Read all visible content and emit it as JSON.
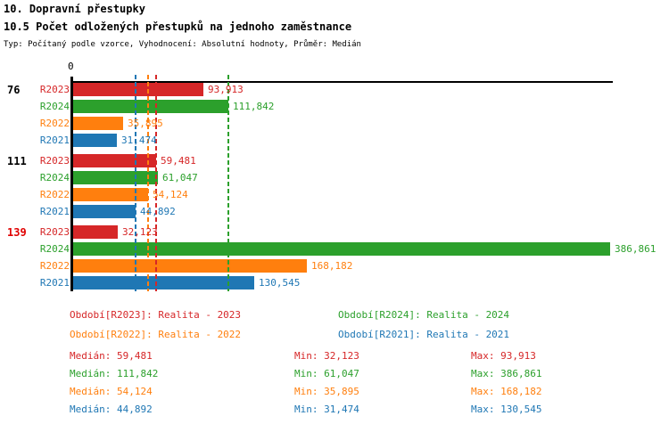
{
  "header": {
    "title_line1": "10. Dopravní přestupky",
    "title_line2": "10.5 Počet odložených přestupků na jednoho zaměstnance",
    "meta": "Typ: Počítaný podle vzorce, Vyhodnocení: Absolutní hodnoty, Průměr: Medián"
  },
  "chart_data": {
    "type": "bar",
    "orientation": "horizontal",
    "axis": {
      "zero_label": "0",
      "xlim": [
        0,
        386861
      ]
    },
    "series_order": [
      "R2023",
      "R2024",
      "R2022",
      "R2021"
    ],
    "series_colors": {
      "R2023": "#d62728",
      "R2024": "#2ca02c",
      "R2022": "#ff7f0e",
      "R2021": "#1f77b4"
    },
    "max_value": 386861,
    "groups": [
      {
        "label": "76",
        "label_color": "#000000",
        "bars": [
          {
            "series": "R2023",
            "value": 93913,
            "display": "93,913"
          },
          {
            "series": "R2024",
            "value": 111842,
            "display": "111,842"
          },
          {
            "series": "R2022",
            "value": 35895,
            "display": "35,895"
          },
          {
            "series": "R2021",
            "value": 31474,
            "display": "31,474"
          }
        ]
      },
      {
        "label": "111",
        "label_color": "#000000",
        "bars": [
          {
            "series": "R2023",
            "value": 59481,
            "display": "59,481"
          },
          {
            "series": "R2024",
            "value": 61047,
            "display": "61,047"
          },
          {
            "series": "R2022",
            "value": 54124,
            "display": "54,124"
          },
          {
            "series": "R2021",
            "value": 44892,
            "display": "44,892"
          }
        ]
      },
      {
        "label": "139",
        "label_color": "#e00000",
        "bars": [
          {
            "series": "R2023",
            "value": 32123,
            "display": "32,123"
          },
          {
            "series": "R2024",
            "value": 386861,
            "display": "386,861"
          },
          {
            "series": "R2022",
            "value": 168182,
            "display": "168,182"
          },
          {
            "series": "R2021",
            "value": 130545,
            "display": "130,545"
          }
        ]
      }
    ],
    "median_lines": [
      {
        "series": "R2023",
        "value": 59481
      },
      {
        "series": "R2024",
        "value": 111842
      },
      {
        "series": "R2022",
        "value": 54124
      },
      {
        "series": "R2021",
        "value": 44892
      }
    ]
  },
  "legend": [
    {
      "series": "R2023",
      "text": "Období[R2023]: Realita - 2023",
      "color": "#d62728"
    },
    {
      "series": "R2024",
      "text": "Období[R2024]: Realita - 2024",
      "color": "#2ca02c"
    },
    {
      "series": "R2022",
      "text": "Období[R2022]: Realita - 2022",
      "color": "#ff7f0e"
    },
    {
      "series": "R2021",
      "text": "Období[R2021]: Realita - 2021",
      "color": "#1f77b4"
    }
  ],
  "stats": [
    {
      "series": "R2023",
      "color": "#d62728",
      "median": "Medián: 59,481",
      "min": "Min: 32,123",
      "max": "Max: 93,913"
    },
    {
      "series": "R2024",
      "color": "#2ca02c",
      "median": "Medián: 111,842",
      "min": "Min: 61,047",
      "max": "Max: 386,861"
    },
    {
      "series": "R2022",
      "color": "#ff7f0e",
      "median": "Medián: 54,124",
      "min": "Min: 35,895",
      "max": "Max: 168,182"
    },
    {
      "series": "R2021",
      "color": "#1f77b4",
      "median": "Medián: 44,892",
      "min": "Min: 31,474",
      "max": "Max: 130,545"
    }
  ]
}
